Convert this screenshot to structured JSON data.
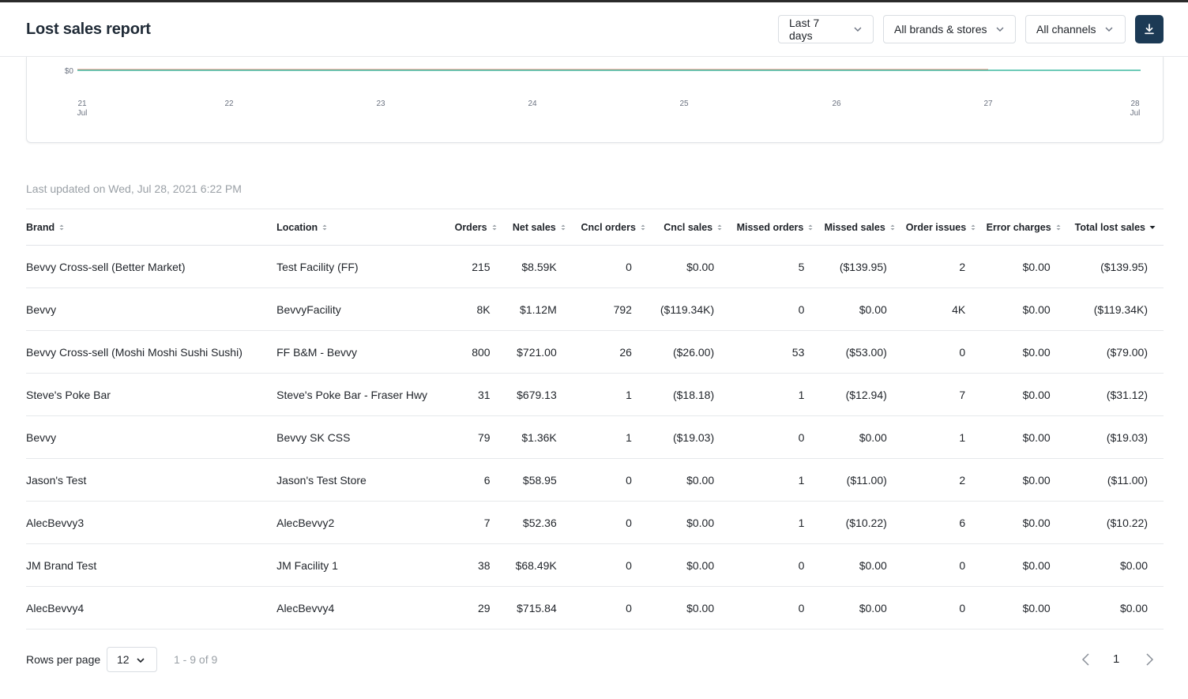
{
  "header": {
    "title": "Lost sales report",
    "date_filter": "Last 7 days",
    "brand_filter": "All brands & stores",
    "channel_filter": "All channels"
  },
  "chart": {
    "y_tick": "$0",
    "x_ticks": [
      {
        "day": "21",
        "month": "Jul"
      },
      {
        "day": "22",
        "month": ""
      },
      {
        "day": "23",
        "month": ""
      },
      {
        "day": "24",
        "month": ""
      },
      {
        "day": "25",
        "month": ""
      },
      {
        "day": "26",
        "month": ""
      },
      {
        "day": "27",
        "month": ""
      },
      {
        "day": "28",
        "month": "Jul"
      }
    ],
    "colors": {
      "teal": "#3fb9a0",
      "salmon": "#f0a090"
    }
  },
  "last_updated": "Last updated on Wed, Jul 28, 2021 6:22 PM",
  "table": {
    "columns": [
      "Brand",
      "Location",
      "Orders",
      "Net sales",
      "Cncl orders",
      "Cncl sales",
      "Missed orders",
      "Missed sales",
      "Order issues",
      "Error charges",
      "Total lost sales"
    ],
    "rows": [
      [
        "Bevvy Cross-sell (Better Market)",
        "Test Facility (FF)",
        "215",
        "$8.59K",
        "0",
        "$0.00",
        "5",
        "($139.95)",
        "2",
        "$0.00",
        "($139.95)"
      ],
      [
        "Bevvy",
        "BevvyFacility",
        "8K",
        "$1.12M",
        "792",
        "($119.34K)",
        "0",
        "$0.00",
        "4K",
        "$0.00",
        "($119.34K)"
      ],
      [
        "Bevvy Cross-sell (Moshi Moshi Sushi Sushi)",
        "FF B&M - Bevvy",
        "800",
        "$721.00",
        "26",
        "($26.00)",
        "53",
        "($53.00)",
        "0",
        "$0.00",
        "($79.00)"
      ],
      [
        "Steve's Poke Bar",
        "Steve's Poke Bar - Fraser Hwy",
        "31",
        "$679.13",
        "1",
        "($18.18)",
        "1",
        "($12.94)",
        "7",
        "$0.00",
        "($31.12)"
      ],
      [
        "Bevvy",
        "Bevvy SK CSS",
        "79",
        "$1.36K",
        "1",
        "($19.03)",
        "0",
        "$0.00",
        "1",
        "$0.00",
        "($19.03)"
      ],
      [
        "Jason's Test",
        "Jason's Test Store",
        "6",
        "$58.95",
        "0",
        "$0.00",
        "1",
        "($11.00)",
        "2",
        "$0.00",
        "($11.00)"
      ],
      [
        "AlecBevvy3",
        "AlecBevvy2",
        "7",
        "$52.36",
        "0",
        "$0.00",
        "1",
        "($10.22)",
        "6",
        "$0.00",
        "($10.22)"
      ],
      [
        "JM Brand Test",
        "JM Facility 1",
        "38",
        "$68.49K",
        "0",
        "$0.00",
        "0",
        "$0.00",
        "0",
        "$0.00",
        "$0.00"
      ],
      [
        "AlecBevvy4",
        "AlecBevvy4",
        "29",
        "$715.84",
        "0",
        "$0.00",
        "0",
        "$0.00",
        "0",
        "$0.00",
        "$0.00"
      ]
    ]
  },
  "footer": {
    "rows_per_page_label": "Rows per page",
    "rows_per_page_value": "12",
    "range_text": "1 - 9 of 9",
    "current_page": "1"
  }
}
